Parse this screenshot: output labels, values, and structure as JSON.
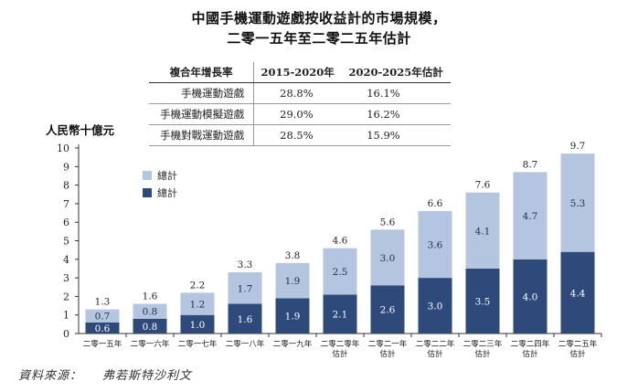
{
  "title": [
    "中國手機運動遊戲按收益計的市場規模，",
    "二零一五年至二零二五年估計"
  ],
  "cagr_table": {
    "headers": [
      "複合年增長率",
      "2015-2020年",
      "2020-2025年估計"
    ],
    "rows": [
      [
        "手機運動遊戲",
        "28.8%",
        "16.1%"
      ],
      [
        "手機運動模擬遊戲",
        "29.0%",
        "16.2%"
      ],
      [
        "手機對戰運動遊戲",
        "28.5%",
        "15.9%"
      ]
    ]
  },
  "source": {
    "label": "資料來源：",
    "value": "弗若斯特沙利文"
  },
  "chart_data": {
    "type": "bar",
    "stacked": true,
    "ylabel": "人民幣十億元",
    "ylim": [
      0,
      10
    ],
    "yticks": [
      0,
      1,
      2,
      3,
      4,
      5,
      6,
      7,
      8,
      9,
      10
    ],
    "categories": [
      [
        "二零一五年"
      ],
      [
        "二零一六年"
      ],
      [
        "二零一七年"
      ],
      [
        "二零一八年"
      ],
      [
        "二零一九年"
      ],
      [
        "二零二零年",
        "估計"
      ],
      [
        "二零二一年",
        "估計"
      ],
      [
        "二零二二年",
        "估計"
      ],
      [
        "二零二三年",
        "估計"
      ],
      [
        "二零二四年",
        "估計"
      ],
      [
        "二零二五年",
        "估計"
      ]
    ],
    "series": [
      {
        "name": "總計",
        "color": "#2e4a7a",
        "values": [
          0.6,
          0.8,
          1.0,
          1.6,
          1.9,
          2.1,
          2.6,
          3.0,
          3.5,
          4.0,
          4.4
        ]
      },
      {
        "name": "總計",
        "color": "#b4c5df",
        "values": [
          0.7,
          0.8,
          1.2,
          1.7,
          1.9,
          2.5,
          3.0,
          3.6,
          4.1,
          4.7,
          5.3
        ]
      }
    ],
    "totals": [
      1.3,
      1.6,
      2.2,
      3.3,
      3.8,
      4.6,
      5.6,
      6.6,
      7.6,
      8.7,
      9.7
    ],
    "legend": [
      {
        "name": "總計",
        "color": "#b4c5df"
      },
      {
        "name": "總計",
        "color": "#2e4a7a"
      }
    ],
    "legend_position": "top-left"
  }
}
